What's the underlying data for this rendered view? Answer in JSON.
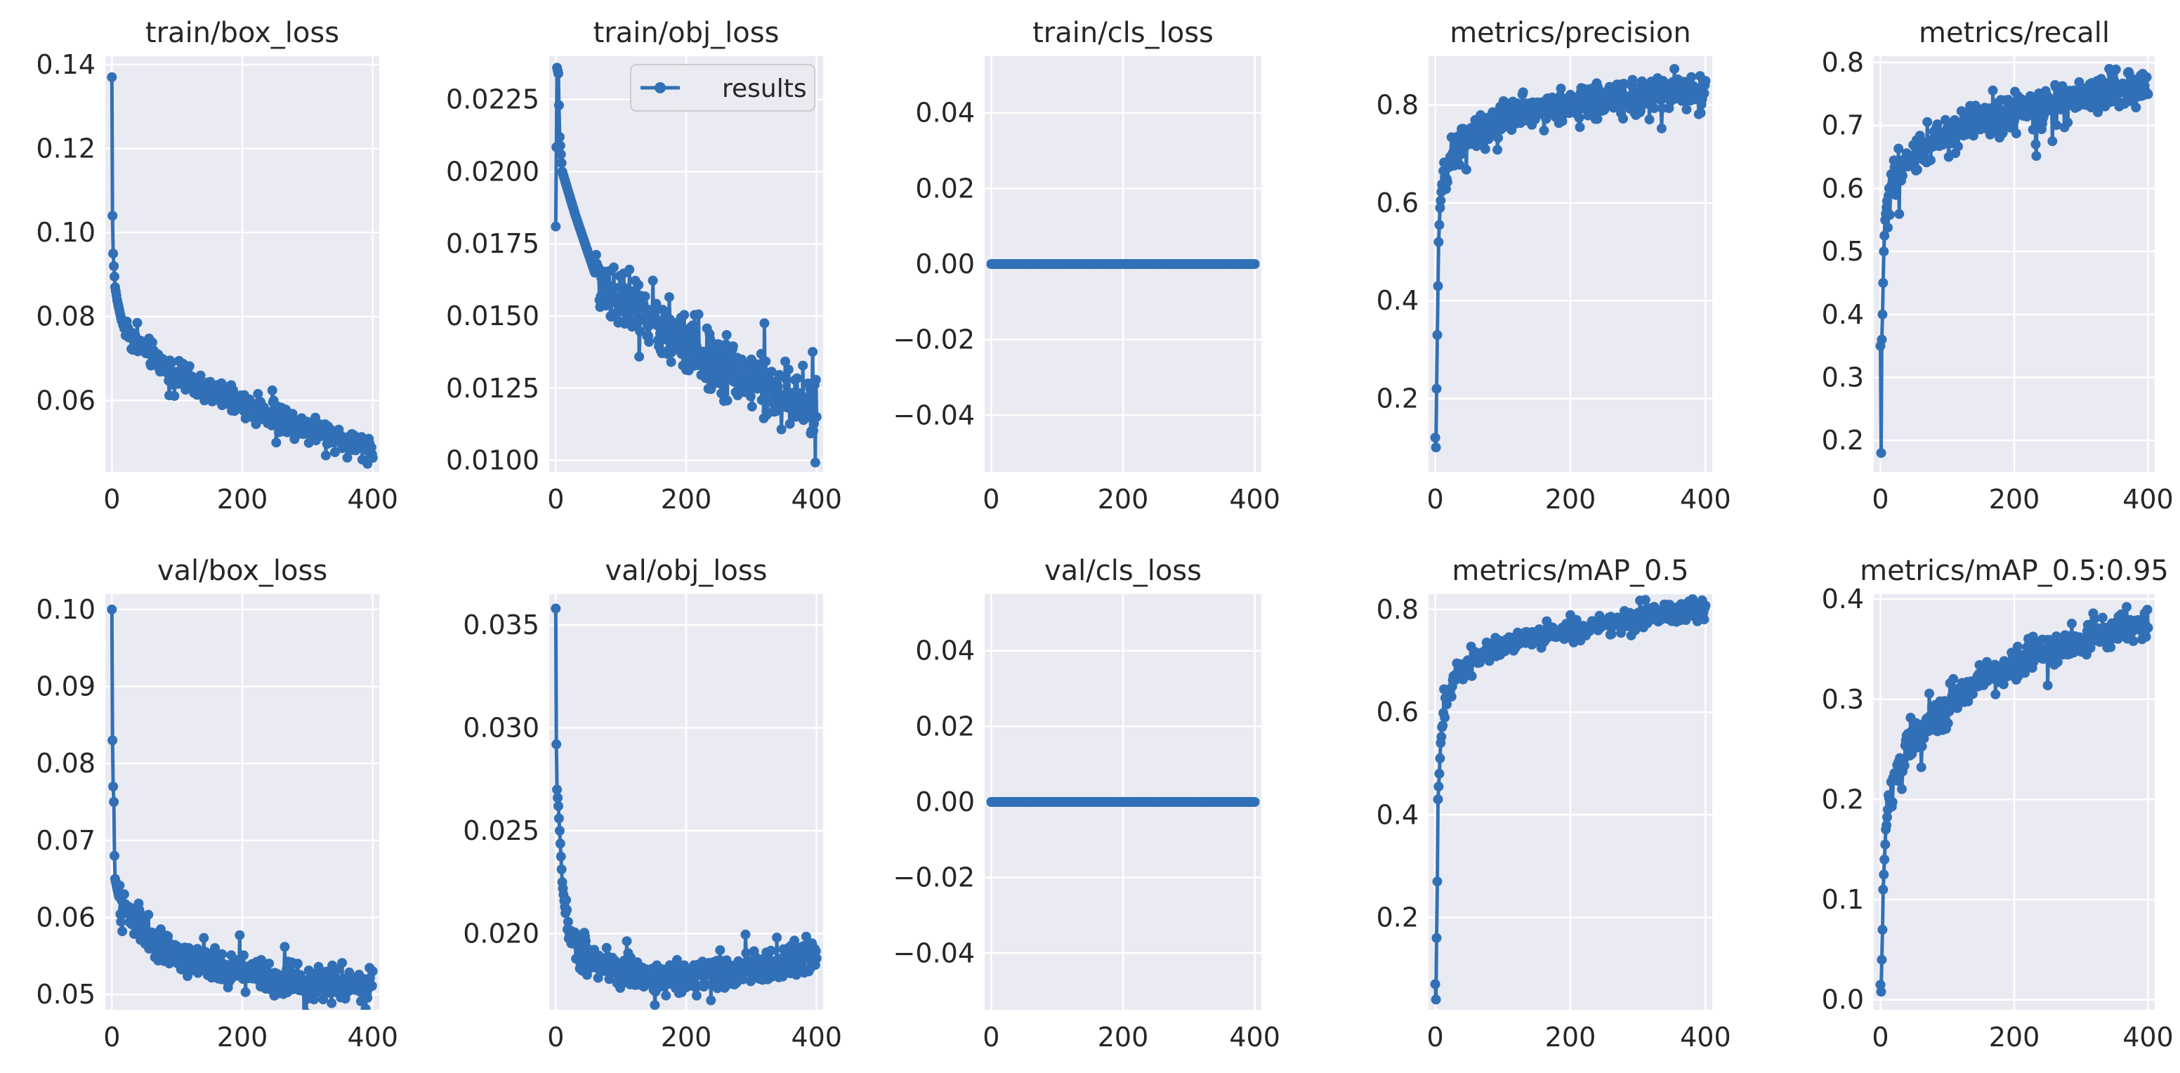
{
  "figure": {
    "series_name": "results",
    "line_color": "#3170b6",
    "face_color": "#eaeaf2",
    "grid_color": "#ffffff"
  },
  "chart_data": [
    {
      "id": "train-box-loss",
      "type": "line",
      "title": "train/box_loss",
      "xlim": [
        -10,
        410
      ],
      "ylim": [
        0.043,
        0.142
      ],
      "xticks": [
        0,
        200,
        400
      ],
      "xtick_labels": [
        "0",
        "200",
        "400"
      ],
      "yticks": [
        0.06,
        0.08,
        0.1,
        0.12,
        0.14
      ],
      "ytick_labels": [
        "0.06",
        "0.08",
        "0.10",
        "0.12",
        "0.14"
      ],
      "legend": null,
      "keypoints": [
        [
          0,
          0.137
        ],
        [
          1,
          0.104
        ],
        [
          2,
          0.095
        ],
        [
          3,
          0.092
        ],
        [
          5,
          0.087
        ],
        [
          8,
          0.084
        ],
        [
          15,
          0.079
        ],
        [
          30,
          0.075
        ],
        [
          60,
          0.071
        ],
        [
          100,
          0.066
        ],
        [
          150,
          0.062
        ],
        [
          200,
          0.059
        ],
        [
          250,
          0.056
        ],
        [
          300,
          0.054
        ],
        [
          350,
          0.051
        ],
        [
          400,
          0.048
        ]
      ],
      "noise": 0.0025
    },
    {
      "id": "train-obj-loss",
      "type": "line",
      "title": "train/obj_loss",
      "xlim": [
        -10,
        410
      ],
      "ylim": [
        0.0096,
        0.024
      ],
      "xticks": [
        0,
        200,
        400
      ],
      "xtick_labels": [
        "0",
        "200",
        "400"
      ],
      "yticks": [
        0.01,
        0.0125,
        0.015,
        0.0175,
        0.02,
        0.0225
      ],
      "ytick_labels": [
        "0.0100",
        "0.0125",
        "0.0150",
        "0.0175",
        "0.0200",
        "0.0225"
      ],
      "legend": {
        "label": "results",
        "position": "upper right"
      },
      "keypoints": [
        [
          0,
          0.0181
        ],
        [
          2,
          0.0236
        ],
        [
          4,
          0.0234
        ],
        [
          6,
          0.0212
        ],
        [
          10,
          0.02
        ],
        [
          30,
          0.0185
        ],
        [
          60,
          0.0165
        ],
        [
          100,
          0.0155
        ],
        [
          150,
          0.0148
        ],
        [
          200,
          0.014
        ],
        [
          250,
          0.0134
        ],
        [
          300,
          0.0128
        ],
        [
          350,
          0.0122
        ],
        [
          400,
          0.0118
        ]
      ],
      "noise": 0.0009
    },
    {
      "id": "train-cls-loss",
      "type": "line",
      "title": "train/cls_loss",
      "xlim": [
        -10,
        410
      ],
      "ylim": [
        -0.055,
        0.055
      ],
      "xticks": [
        0,
        200,
        400
      ],
      "xtick_labels": [
        "0",
        "200",
        "400"
      ],
      "yticks": [
        -0.04,
        -0.02,
        0.0,
        0.02,
        0.04
      ],
      "ytick_labels": [
        "−0.04",
        "−0.02",
        "0.00",
        "0.02",
        "0.04"
      ],
      "legend": null,
      "keypoints": [
        [
          0,
          0
        ],
        [
          400,
          0
        ]
      ],
      "noise": 0
    },
    {
      "id": "metrics-precision",
      "type": "line",
      "title": "metrics/precision",
      "xlim": [
        -10,
        410
      ],
      "ylim": [
        0.05,
        0.9
      ],
      "xticks": [
        0,
        200,
        400
      ],
      "xtick_labels": [
        "0",
        "200",
        "400"
      ],
      "yticks": [
        0.2,
        0.4,
        0.6,
        0.8
      ],
      "ytick_labels": [
        "0.2",
        "0.4",
        "0.6",
        "0.8"
      ],
      "legend": null,
      "keypoints": [
        [
          0,
          0.12
        ],
        [
          1,
          0.1
        ],
        [
          2,
          0.22
        ],
        [
          3,
          0.33
        ],
        [
          4,
          0.43
        ],
        [
          5,
          0.52
        ],
        [
          7,
          0.59
        ],
        [
          10,
          0.63
        ],
        [
          20,
          0.68
        ],
        [
          40,
          0.72
        ],
        [
          80,
          0.76
        ],
        [
          150,
          0.79
        ],
        [
          250,
          0.81
        ],
        [
          320,
          0.82
        ],
        [
          400,
          0.83
        ]
      ],
      "noise": 0.03
    },
    {
      "id": "metrics-recall",
      "type": "line",
      "title": "metrics/recall",
      "xlim": [
        -10,
        410
      ],
      "ylim": [
        0.15,
        0.81
      ],
      "xticks": [
        0,
        200,
        400
      ],
      "xtick_labels": [
        "0",
        "200",
        "400"
      ],
      "yticks": [
        0.2,
        0.3,
        0.4,
        0.5,
        0.6,
        0.7,
        0.8
      ],
      "ytick_labels": [
        "0.2",
        "0.3",
        "0.4",
        "0.5",
        "0.6",
        "0.7",
        "0.8"
      ],
      "legend": null,
      "keypoints": [
        [
          0,
          0.35
        ],
        [
          1,
          0.18
        ],
        [
          2,
          0.36
        ],
        [
          3,
          0.4
        ],
        [
          5,
          0.5
        ],
        [
          7,
          0.55
        ],
        [
          10,
          0.58
        ],
        [
          20,
          0.61
        ],
        [
          40,
          0.64
        ],
        [
          80,
          0.68
        ],
        [
          150,
          0.71
        ],
        [
          250,
          0.73
        ],
        [
          320,
          0.75
        ],
        [
          400,
          0.76
        ]
      ],
      "noise": 0.025
    },
    {
      "id": "val-box-loss",
      "type": "line",
      "title": "val/box_loss",
      "xlim": [
        -10,
        410
      ],
      "ylim": [
        0.048,
        0.102
      ],
      "xticks": [
        0,
        200,
        400
      ],
      "xtick_labels": [
        "0",
        "200",
        "400"
      ],
      "yticks": [
        0.05,
        0.06,
        0.07,
        0.08,
        0.09,
        0.1
      ],
      "ytick_labels": [
        "0.05",
        "0.06",
        "0.07",
        "0.08",
        "0.09",
        "0.10"
      ],
      "legend": null,
      "keypoints": [
        [
          0,
          0.1
        ],
        [
          1,
          0.083
        ],
        [
          2,
          0.077
        ],
        [
          3,
          0.075
        ],
        [
          4,
          0.068
        ],
        [
          5,
          0.065
        ],
        [
          10,
          0.063
        ],
        [
          20,
          0.061
        ],
        [
          40,
          0.059
        ],
        [
          60,
          0.057
        ],
        [
          100,
          0.055
        ],
        [
          150,
          0.054
        ],
        [
          200,
          0.053
        ],
        [
          250,
          0.052
        ],
        [
          300,
          0.0515
        ],
        [
          400,
          0.051
        ]
      ],
      "noise": 0.0018
    },
    {
      "id": "val-obj-loss",
      "type": "line",
      "title": "val/obj_loss",
      "xlim": [
        -10,
        410
      ],
      "ylim": [
        0.0163,
        0.0365
      ],
      "xticks": [
        0,
        200,
        400
      ],
      "xtick_labels": [
        "0",
        "200",
        "400"
      ],
      "yticks": [
        0.02,
        0.025,
        0.03,
        0.035
      ],
      "ytick_labels": [
        "0.020",
        "0.025",
        "0.030",
        "0.035"
      ],
      "legend": null,
      "keypoints": [
        [
          0,
          0.0358
        ],
        [
          1,
          0.0292
        ],
        [
          2,
          0.027
        ],
        [
          4,
          0.0262
        ],
        [
          6,
          0.025
        ],
        [
          10,
          0.0225
        ],
        [
          15,
          0.021
        ],
        [
          25,
          0.0197
        ],
        [
          50,
          0.0188
        ],
        [
          100,
          0.0182
        ],
        [
          150,
          0.0179
        ],
        [
          200,
          0.0178
        ],
        [
          250,
          0.018
        ],
        [
          300,
          0.0183
        ],
        [
          350,
          0.0186
        ],
        [
          400,
          0.0189
        ]
      ],
      "noise": 0.0007
    },
    {
      "id": "val-cls-loss",
      "type": "line",
      "title": "val/cls_loss",
      "xlim": [
        -10,
        410
      ],
      "ylim": [
        -0.055,
        0.055
      ],
      "xticks": [
        0,
        200,
        400
      ],
      "xtick_labels": [
        "0",
        "200",
        "400"
      ],
      "yticks": [
        -0.04,
        -0.02,
        0.0,
        0.02,
        0.04
      ],
      "ytick_labels": [
        "−0.04",
        "−0.02",
        "0.00",
        "0.02",
        "0.04"
      ],
      "legend": null,
      "keypoints": [
        [
          0,
          0
        ],
        [
          400,
          0
        ]
      ],
      "noise": 0
    },
    {
      "id": "metrics-map-05",
      "type": "line",
      "title": "metrics/mAP_0.5",
      "xlim": [
        -10,
        410
      ],
      "ylim": [
        0.02,
        0.83
      ],
      "xticks": [
        0,
        200,
        400
      ],
      "xtick_labels": [
        "0",
        "200",
        "400"
      ],
      "yticks": [
        0.2,
        0.4,
        0.6,
        0.8
      ],
      "ytick_labels": [
        "0.2",
        "0.4",
        "0.6",
        "0.8"
      ],
      "legend": null,
      "keypoints": [
        [
          0,
          0.07
        ],
        [
          1,
          0.04
        ],
        [
          2,
          0.16
        ],
        [
          3,
          0.27
        ],
        [
          4,
          0.43
        ],
        [
          6,
          0.48
        ],
        [
          8,
          0.54
        ],
        [
          12,
          0.6
        ],
        [
          20,
          0.64
        ],
        [
          40,
          0.68
        ],
        [
          80,
          0.72
        ],
        [
          150,
          0.75
        ],
        [
          250,
          0.77
        ],
        [
          320,
          0.79
        ],
        [
          400,
          0.8
        ]
      ],
      "noise": 0.015
    },
    {
      "id": "metrics-map-05-095",
      "type": "line",
      "title": "metrics/mAP_0.5:0.95",
      "xlim": [
        -10,
        410
      ],
      "ylim": [
        -0.01,
        0.405
      ],
      "xticks": [
        0,
        200,
        400
      ],
      "xtick_labels": [
        "0",
        "200",
        "400"
      ],
      "yticks": [
        0.0,
        0.1,
        0.2,
        0.3,
        0.4
      ],
      "ytick_labels": [
        "0.0",
        "0.1",
        "0.2",
        "0.3",
        "0.4"
      ],
      "legend": null,
      "keypoints": [
        [
          0,
          0.015
        ],
        [
          1,
          0.008
        ],
        [
          2,
          0.04
        ],
        [
          3,
          0.07
        ],
        [
          4,
          0.11
        ],
        [
          6,
          0.14
        ],
        [
          8,
          0.17
        ],
        [
          12,
          0.2
        ],
        [
          20,
          0.22
        ],
        [
          40,
          0.25
        ],
        [
          80,
          0.28
        ],
        [
          150,
          0.32
        ],
        [
          250,
          0.35
        ],
        [
          320,
          0.365
        ],
        [
          400,
          0.375
        ]
      ],
      "noise": 0.012
    }
  ]
}
